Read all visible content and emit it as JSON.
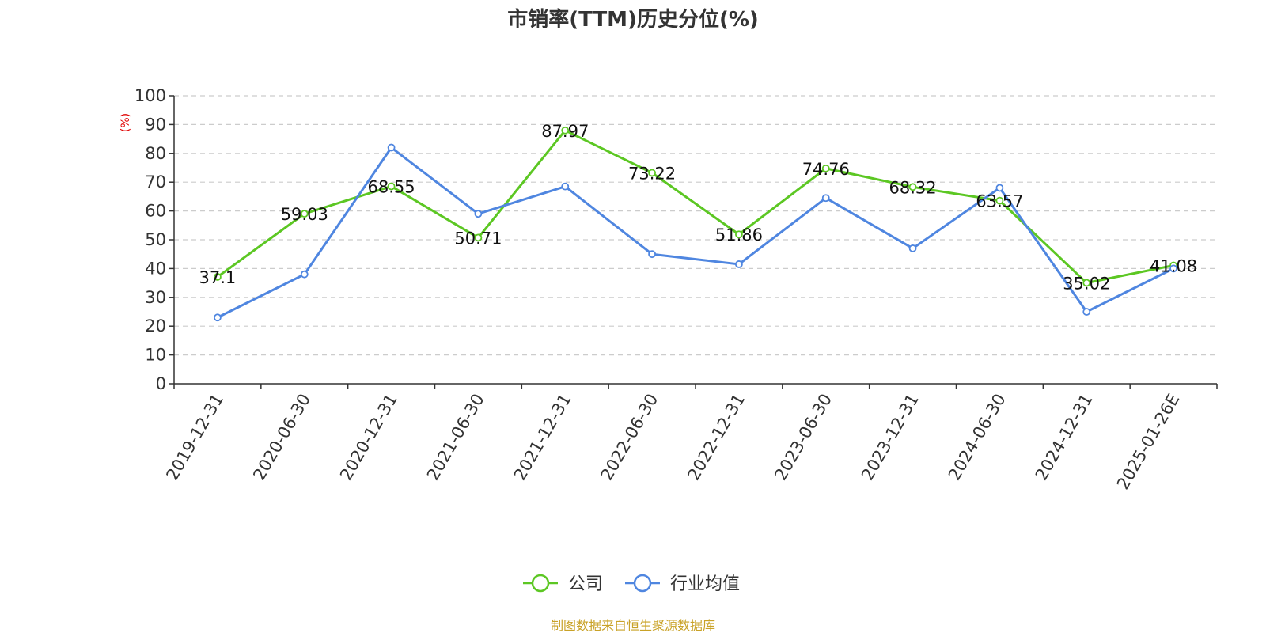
{
  "title": "市销率(TTM)历史分位(%)",
  "source": "制图数据来自恒生聚源数据库",
  "colors": {
    "company": "#5cc723",
    "industry": "#4f86e0",
    "ylabel": "#e00000",
    "source": "#c9a227"
  },
  "chart_data": {
    "type": "line",
    "title": "市销率(TTM)历史分位(%)",
    "ylabel": "(%)",
    "xlabel": "",
    "ylim": [
      0,
      100
    ],
    "yticks": [
      0,
      10,
      20,
      30,
      40,
      50,
      60,
      70,
      80,
      90,
      100
    ],
    "grid": "horizontal dashed",
    "legend_position": "bottom",
    "categories": [
      "2019-12-31",
      "2020-06-30",
      "2020-12-31",
      "2021-06-30",
      "2021-12-31",
      "2022-06-30",
      "2022-12-31",
      "2023-06-30",
      "2023-12-31",
      "2024-06-30",
      "2024-12-31",
      "2025-01-26E"
    ],
    "series": [
      {
        "name": "公司",
        "color": "#5cc723",
        "values": [
          37.1,
          59.03,
          68.55,
          50.71,
          87.97,
          73.22,
          51.86,
          74.76,
          68.32,
          63.57,
          35.02,
          41.08
        ],
        "labels": [
          "37.1",
          "59.03",
          "68.55",
          "50.71",
          "87.97",
          "73.22",
          "51.86",
          "74.76",
          "68.32",
          "63.57",
          "35.02",
          "41.08"
        ]
      },
      {
        "name": "行业均值",
        "color": "#4f86e0",
        "values": [
          23.0,
          38.0,
          82.0,
          59.0,
          68.5,
          45.0,
          41.5,
          64.5,
          47.0,
          68.0,
          25.0,
          40.0
        ]
      }
    ]
  }
}
